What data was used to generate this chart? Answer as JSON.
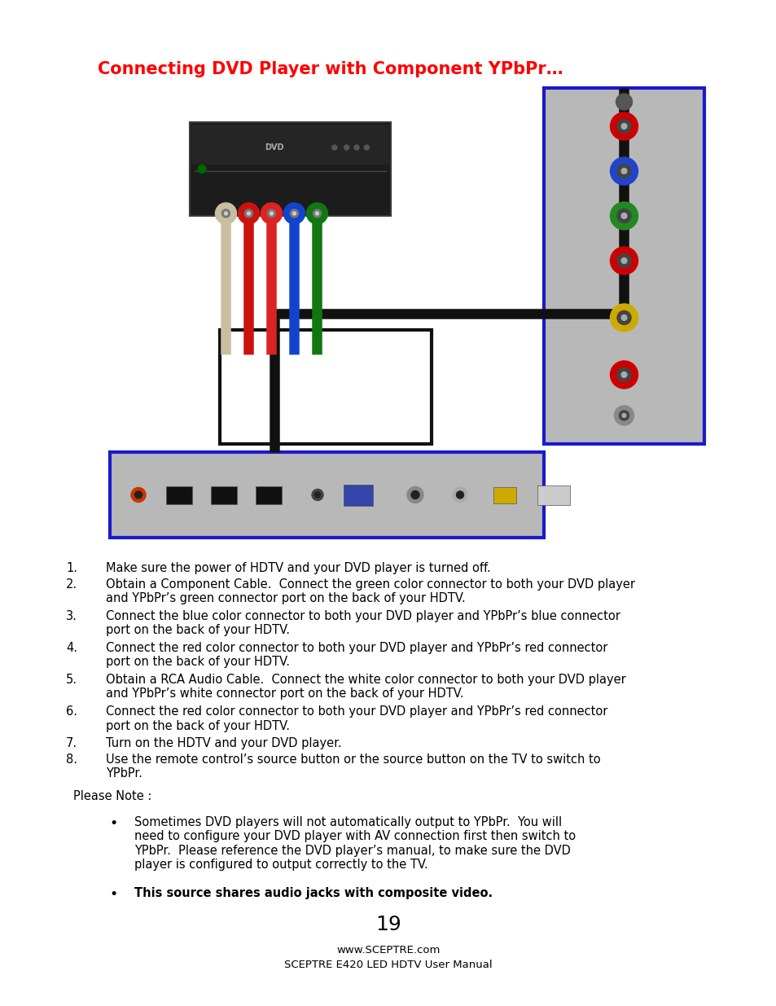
{
  "title": "Connecting DVD Player with Component YPbPr…",
  "title_color": "#FF0000",
  "title_fontsize": 15,
  "bg_color": "#FFFFFF",
  "instructions": [
    [
      "1.",
      "Make sure the power of HDTV and your DVD player is turned off."
    ],
    [
      "2.",
      "Obtain a Component Cable.  Connect the green color connector to both your DVD player\nand YPbPr’s green connector port on the back of your HDTV."
    ],
    [
      "3.",
      "Connect the blue color connector to both your DVD player and YPbPr’s blue connector\nport on the back of your HDTV."
    ],
    [
      "4.",
      "Connect the red color connector to both your DVD player and YPbPr’s red connector\nport on the back of your HDTV."
    ],
    [
      "5.",
      "Obtain a RCA Audio Cable.  Connect the white color connector to both your DVD player\nand YPbPr’s white connector port on the back of your HDTV."
    ],
    [
      "6.",
      "Connect the red color connector to both your DVD player and YPbPr’s red connector\nport on the back of your HDTV."
    ],
    [
      "7.",
      "Turn on the HDTV and your DVD player."
    ],
    [
      "8.",
      "Use the remote control’s source button or the source button on the TV to switch to\nYPbPr."
    ]
  ],
  "please_note": "Please Note :",
  "bullets": [
    {
      "text": "Sometimes DVD players will not automatically output to YPbPr.  You will\nneed to configure your DVD player with AV connection first then switch to\nYPbPr.  Please reference the DVD player’s manual, to make sure the DVD\nplayer is configured to output correctly to the TV.",
      "bold": false
    },
    {
      "text": "This source shares audio jacks with composite video.",
      "bold": true
    }
  ],
  "page_number": "19",
  "footer_line1": "www.SCEPTRE.com",
  "footer_line2": "SCEPTRE E420 LED HDTV User Manual",
  "instr_fontsize": 10.5
}
